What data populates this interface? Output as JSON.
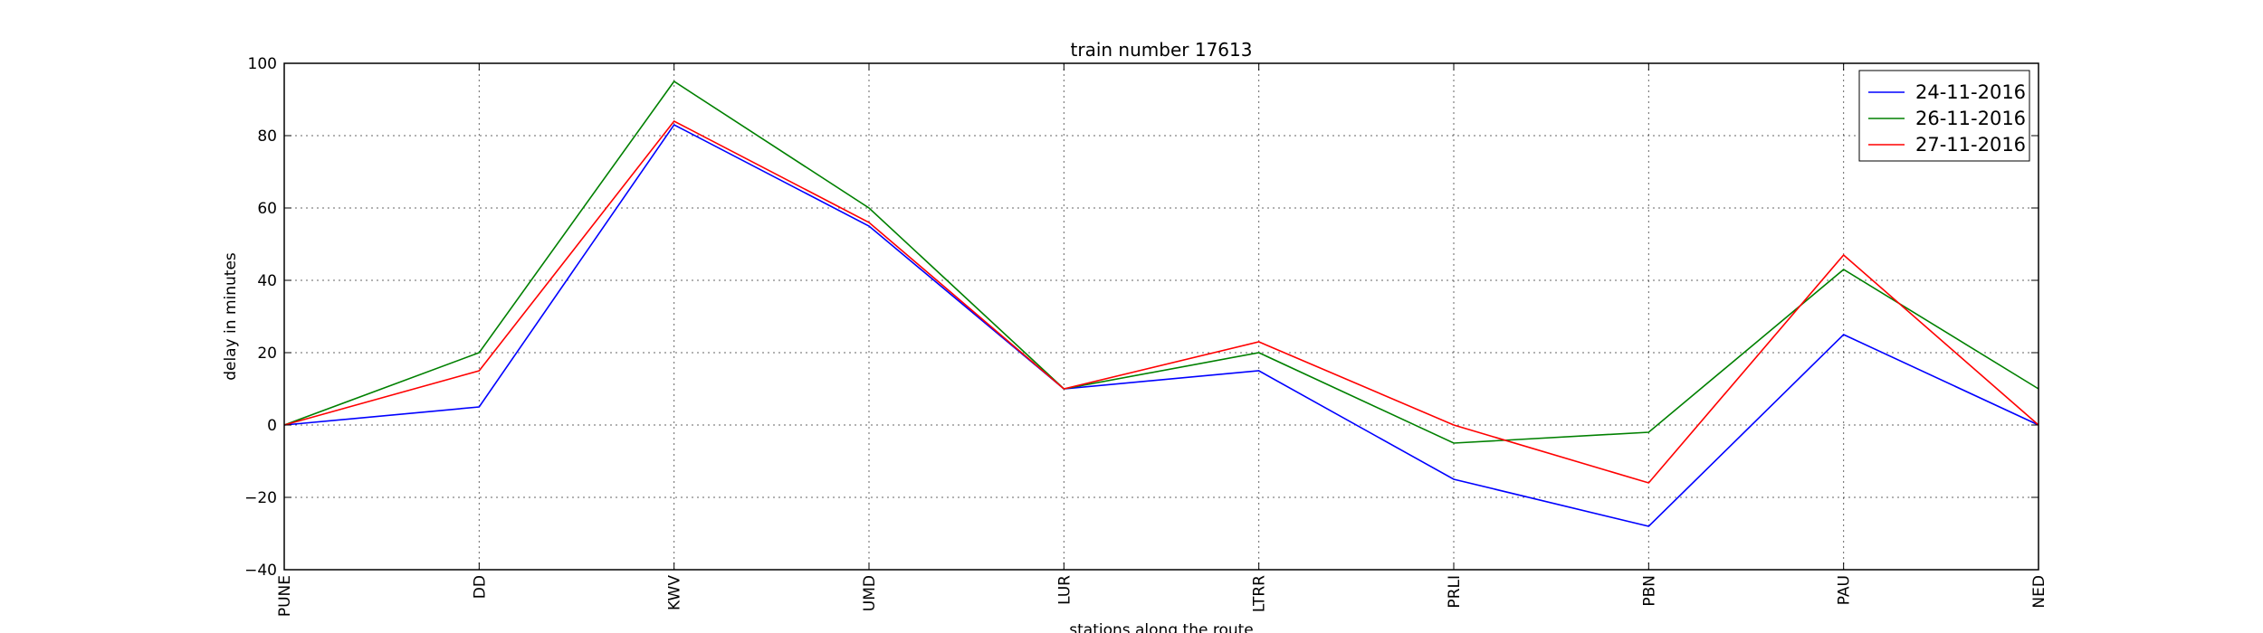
{
  "chart_data": {
    "type": "line",
    "title": "train number 17613",
    "xlabel": "stations along the route",
    "ylabel": "delay in minutes",
    "categories": [
      "PUNE",
      "DD",
      "KWV",
      "UMD",
      "LUR",
      "LTRR",
      "PRLI",
      "PBN",
      "PAU",
      "NED"
    ],
    "ylim": [
      -40,
      100
    ],
    "yticks": [
      -40,
      -20,
      0,
      20,
      40,
      60,
      80,
      100
    ],
    "ytick_labels": [
      "−40",
      "−20",
      "0",
      "20",
      "40",
      "60",
      "80",
      "100"
    ],
    "grid": true,
    "legend_position": "top-right",
    "series": [
      {
        "name": "24-11-2016",
        "color": "#0000ff",
        "values": [
          0,
          5,
          83,
          55,
          10,
          15,
          -15,
          -28,
          25,
          0
        ]
      },
      {
        "name": "26-11-2016",
        "color": "#008000",
        "values": [
          0,
          20,
          95,
          60,
          10,
          20,
          -5,
          -2,
          43,
          10
        ]
      },
      {
        "name": "27-11-2016",
        "color": "#ff0000",
        "values": [
          0,
          15,
          84,
          56,
          10,
          23,
          0,
          -16,
          47,
          0
        ]
      }
    ]
  }
}
